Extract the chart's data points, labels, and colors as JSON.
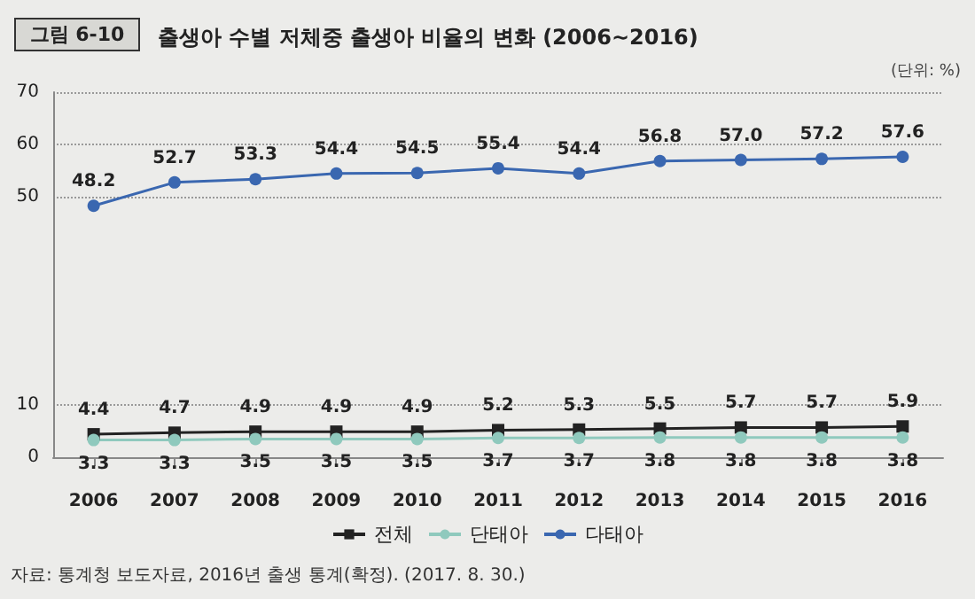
{
  "chart_data": {
    "type": "line",
    "title": "출생아 수별 저체중 출생아 비율의 변화 (2006~2016)",
    "annotations": [
      "그림 6-10",
      "(단위: %)",
      "자료: 통계청 보도자료, 2016년 출생 통계(확정). (2017. 8. 30.)"
    ],
    "categories": [
      "2006",
      "2007",
      "2008",
      "2009",
      "2010",
      "2011",
      "2012",
      "2013",
      "2014",
      "2015",
      "2016"
    ],
    "series": [
      {
        "name": "전체",
        "color": "#222222",
        "marker": "square",
        "values": [
          4.4,
          4.7,
          4.9,
          4.9,
          4.9,
          5.2,
          5.3,
          5.5,
          5.7,
          5.7,
          5.9
        ],
        "value_labels": [
          "4.4",
          "4.7",
          "4.9",
          "4.9",
          "4.9",
          "5.2",
          "5.3",
          "5.5",
          "5.7",
          "5.7",
          "5.9"
        ]
      },
      {
        "name": "단태아",
        "color": "#8fc9bd",
        "marker": "circle",
        "values": [
          3.3,
          3.3,
          3.5,
          3.5,
          3.5,
          3.7,
          3.7,
          3.8,
          3.8,
          3.8,
          3.8
        ],
        "value_labels": [
          "3.3",
          "3.3",
          "3.5",
          "3.5",
          "3.5",
          "3.7",
          "3.7",
          "3.8",
          "3.8",
          "3.8",
          "3.8"
        ]
      },
      {
        "name": "다태아",
        "color": "#3a67b0",
        "marker": "circle",
        "values": [
          48.2,
          52.7,
          53.3,
          54.4,
          54.5,
          55.4,
          54.4,
          56.8,
          57.0,
          57.2,
          57.6
        ],
        "value_labels": [
          "48.2",
          "52.7",
          "53.3",
          "54.4",
          "54.5",
          "55.4",
          "54.4",
          "56.8",
          "57.0",
          "57.2",
          "57.6"
        ]
      }
    ],
    "ylim": [
      0,
      70
    ],
    "yticks": [
      0,
      10,
      50,
      60,
      70
    ],
    "grid": "y",
    "legend": "bottom"
  }
}
